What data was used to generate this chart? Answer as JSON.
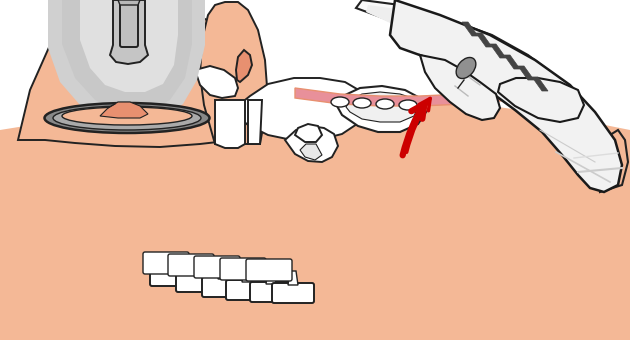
{
  "bg_color": "#ffffff",
  "skin_color": "#F4B896",
  "skin_dark": "#E89070",
  "bone_color": "#ffffff",
  "bone_outline": "#222222",
  "mask_body_color": "#d0d0d0",
  "mask_rim_color": "#999999",
  "mask_rim_dark": "#888888",
  "glove_color": "#f2f2f2",
  "glove_outline": "#1a1a1a",
  "tube_color": "#f8f8f8",
  "tube_stripe": "#444444",
  "arrow_color": "#cc0000",
  "pink_tissue": "#e8909a",
  "gray_small": "#909090",
  "fig_width": 6.3,
  "fig_height": 3.4,
  "dpi": 100
}
